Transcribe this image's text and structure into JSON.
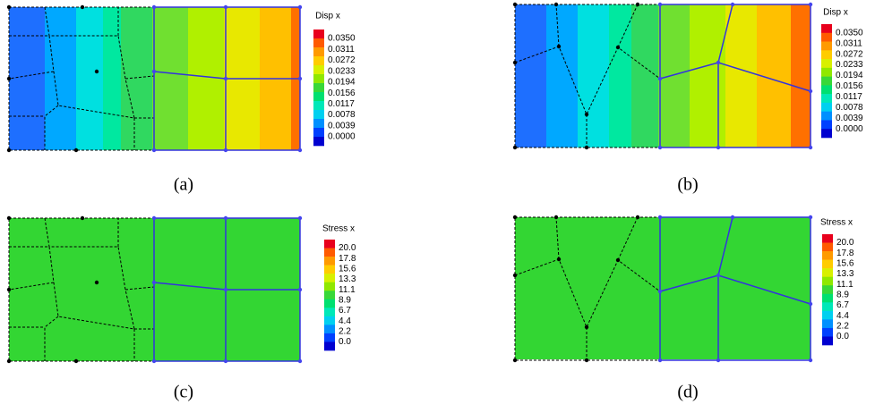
{
  "panels": [
    {
      "caption": "(a)",
      "legend": {
        "title": "Disp x",
        "labels": [
          "0.0350",
          "0.0311",
          "0.0272",
          "0.0233",
          "0.0194",
          "0.0156",
          "0.0117",
          "0.0078",
          "0.0039",
          "0.0000"
        ]
      }
    },
    {
      "caption": "(b)",
      "legend": {
        "title": "Disp x",
        "labels": [
          "0.0350",
          "0.0311",
          "0.0272",
          "0.0233",
          "0.0194",
          "0.0156",
          "0.0117",
          "0.0078",
          "0.0039",
          "0.0000"
        ]
      }
    },
    {
      "caption": "(c)",
      "legend": {
        "title": "Stress x",
        "labels": [
          "20.0",
          "17.8",
          "15.6",
          "13.3",
          "11.1",
          "8.9",
          "6.7",
          "4.4",
          "2.2",
          "0.0"
        ]
      }
    },
    {
      "caption": "(d)",
      "legend": {
        "title": "Stress x",
        "labels": [
          "20.0",
          "17.8",
          "15.6",
          "13.3",
          "11.1",
          "8.9",
          "6.7",
          "4.4",
          "2.2",
          "0.0"
        ]
      }
    }
  ]
}
